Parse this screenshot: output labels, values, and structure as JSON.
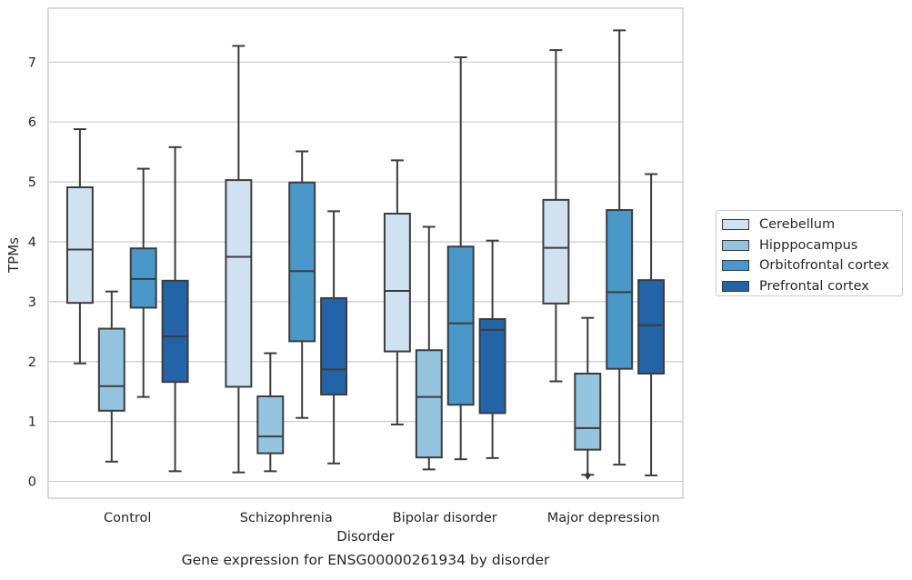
{
  "chart_data": {
    "type": "box",
    "title": "",
    "caption": "Gene expression for ENSG00000261934 by disorder",
    "xlabel": "Disorder",
    "ylabel": "TPMs",
    "ylim": [
      -0.28,
      7.9
    ],
    "yticks": [
      "0",
      "1",
      "2",
      "3",
      "4",
      "5",
      "6",
      "7"
    ],
    "grid": "horizontal",
    "legend_position": "right",
    "categories": [
      "Control",
      "Schizophrenia",
      "Bipolar disorder",
      "Major depression"
    ],
    "series": [
      {
        "name": "Cerebellum",
        "color": "#d0e1f2",
        "boxes": [
          {
            "whislo": 1.97,
            "q1": 2.98,
            "med": 3.87,
            "q3": 4.91,
            "whishi": 5.88,
            "fliers": []
          },
          {
            "whislo": 0.15,
            "q1": 1.58,
            "med": 3.75,
            "q3": 5.03,
            "whishi": 7.27,
            "fliers": []
          },
          {
            "whislo": 0.95,
            "q1": 2.17,
            "med": 3.18,
            "q3": 4.47,
            "whishi": 5.36,
            "fliers": []
          },
          {
            "whislo": 1.67,
            "q1": 2.97,
            "med": 3.9,
            "q3": 4.7,
            "whishi": 7.2,
            "fliers": []
          }
        ]
      },
      {
        "name": "Hipppocampus",
        "color": "#94c4df",
        "boxes": [
          {
            "whislo": 0.33,
            "q1": 1.18,
            "med": 1.59,
            "q3": 2.55,
            "whishi": 3.17,
            "fliers": []
          },
          {
            "whislo": 0.17,
            "q1": 0.47,
            "med": 0.75,
            "q3": 1.42,
            "whishi": 2.14,
            "fliers": []
          },
          {
            "whislo": 0.2,
            "q1": 0.4,
            "med": 1.41,
            "q3": 2.19,
            "whishi": 4.25,
            "fliers": []
          },
          {
            "whislo": 0.11,
            "q1": 0.53,
            "med": 0.89,
            "q3": 1.8,
            "whishi": 2.73,
            "fliers": [
              0.1
            ]
          }
        ]
      },
      {
        "name": "Orbitofrontal cortex",
        "color": "#4a98c9",
        "boxes": [
          {
            "whislo": 1.41,
            "q1": 2.9,
            "med": 3.38,
            "q3": 3.89,
            "whishi": 5.22,
            "fliers": []
          },
          {
            "whislo": 1.06,
            "q1": 2.34,
            "med": 3.51,
            "q3": 4.99,
            "whishi": 5.51,
            "fliers": []
          },
          {
            "whislo": 0.37,
            "q1": 1.28,
            "med": 2.64,
            "q3": 3.92,
            "whishi": 7.08,
            "fliers": []
          },
          {
            "whislo": 0.28,
            "q1": 1.88,
            "med": 3.16,
            "q3": 4.53,
            "whishi": 7.53,
            "fliers": []
          }
        ]
      },
      {
        "name": "Prefrontal cortex",
        "color": "#2363a7",
        "boxes": [
          {
            "whislo": 0.17,
            "q1": 1.66,
            "med": 2.42,
            "q3": 3.35,
            "whishi": 5.58,
            "fliers": []
          },
          {
            "whislo": 0.3,
            "q1": 1.45,
            "med": 1.87,
            "q3": 3.06,
            "whishi": 4.51,
            "fliers": []
          },
          {
            "whislo": 0.39,
            "q1": 1.14,
            "med": 2.53,
            "q3": 2.71,
            "whishi": 4.02,
            "fliers": []
          },
          {
            "whislo": 0.1,
            "q1": 1.8,
            "med": 2.61,
            "q3": 3.36,
            "whishi": 5.13,
            "fliers": []
          }
        ]
      }
    ]
  }
}
